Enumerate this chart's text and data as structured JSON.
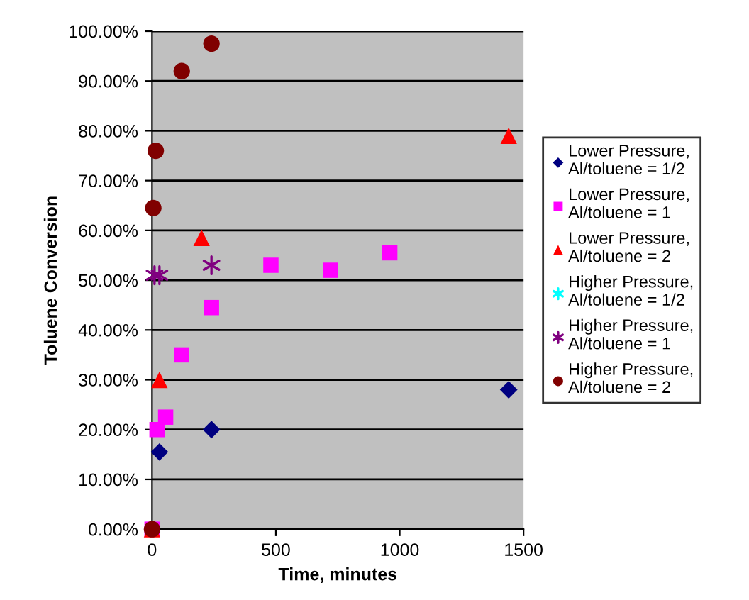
{
  "chart_data": {
    "type": "scatter",
    "xlabel": "Time, minutes",
    "ylabel": "Toluene Conversion",
    "xlim": [
      0,
      1500
    ],
    "xticks": [
      0,
      500,
      1000,
      1500
    ],
    "ylim": [
      0,
      100
    ],
    "yticks": [
      {
        "value": 0,
        "label": "0.00%"
      },
      {
        "value": 10,
        "label": "10.00%"
      },
      {
        "value": 20,
        "label": "20.00%"
      },
      {
        "value": 30,
        "label": "30.00%"
      },
      {
        "value": 40,
        "label": "40.00%"
      },
      {
        "value": 50,
        "label": "50.00%"
      },
      {
        "value": 60,
        "label": "60.00%"
      },
      {
        "value": 70,
        "label": "70.00%"
      },
      {
        "value": 80,
        "label": "80.00%"
      },
      {
        "value": 90,
        "label": "90.00%"
      },
      {
        "value": 100,
        "label": "100.00%"
      }
    ],
    "grid": "y",
    "legend": "right",
    "series": [
      {
        "name": "Lower Pressure,\nAl/toluene = 1/2",
        "color": "#000080",
        "marker": "diamond",
        "x": [
          30,
          240,
          1440
        ],
        "values": [
          15.5,
          20,
          28
        ]
      },
      {
        "name": "Lower Pressure,\nAl/toluene = 1",
        "color": "#ff00ff",
        "marker": "square",
        "x": [
          0,
          20,
          55,
          120,
          240,
          480,
          720,
          960
        ],
        "values": [
          0,
          20,
          22.5,
          35,
          44.5,
          53,
          52,
          55.5
        ]
      },
      {
        "name": "Lower Pressure,\nAl/toluene = 2",
        "color": "#ff0000",
        "marker": "triangle",
        "x": [
          0,
          30,
          200,
          1440
        ],
        "values": [
          0,
          30,
          58.5,
          79
        ]
      },
      {
        "name": "Higher Pressure,\nAl/toluene = 1/2",
        "color": "#00ffff",
        "marker": "cross"
      },
      {
        "name": "Higher Pressure,\nAl/toluene = 1",
        "color": "#800080",
        "marker": "cross",
        "x": [
          10,
          30,
          240
        ],
        "values": [
          51,
          51,
          53
        ]
      },
      {
        "name": "Higher Pressure,\nAl/toluene = 2",
        "color": "#800000",
        "marker": "circle",
        "x": [
          0,
          5,
          15,
          120,
          240
        ],
        "values": [
          0,
          64.5,
          76,
          92,
          97.5
        ]
      }
    ]
  }
}
